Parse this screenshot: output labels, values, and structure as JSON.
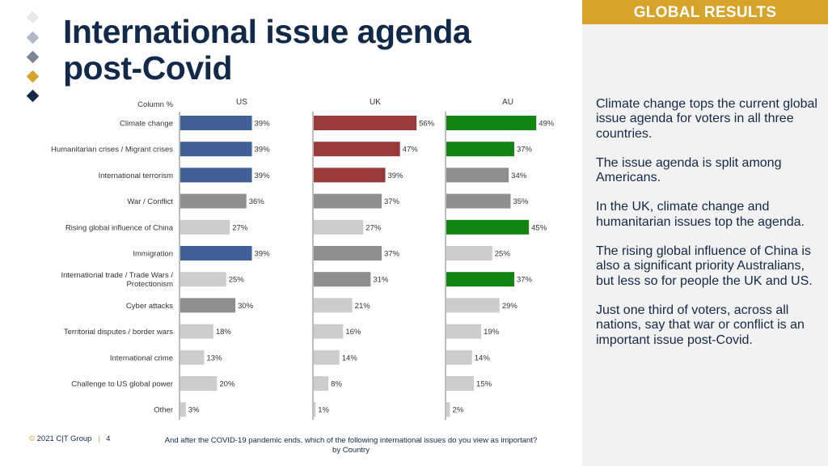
{
  "slide": {
    "title_line1": "International issue agenda",
    "title_line2": "post-Covid",
    "banner": "GLOBAL RESULTS",
    "insights": [
      "Climate change tops the current global issue agenda for voters in all three countries.",
      "The issue agenda is split among Americans.",
      "In the UK, climate change and humanitarian issues top the agenda.",
      "The rising global influence of China is also a significant priority Australians, but less so for people the UK and US.",
      "Just one third of voters, across all nations, say that war or conflict is an important issue post-Covid."
    ],
    "footer": {
      "copyright": "©",
      "org": "2021 C|T Group",
      "separator": "|",
      "page": "4",
      "question_line1": "And after the COVID-19 pandemic ends, which of the following international issues do you view as important?",
      "question_line2": "by Country"
    }
  },
  "colors": {
    "navy": "#12294a",
    "gold": "#d8a32a",
    "diamonds": [
      "#e6e8ee",
      "#b3b8c8",
      "#7d8496",
      "#d8a32a",
      "#12294a"
    ],
    "us_highlight": "#3f5f95",
    "uk_highlight": "#983a39",
    "au_highlight": "#118411",
    "grey_dark": "#8f8f8f",
    "grey_light": "#cdcdcd"
  },
  "chart_data": {
    "type": "bar",
    "orientation": "horizontal",
    "corner_label": "Column %",
    "categories": [
      "Climate change",
      "Humanitarian crises / Migrant crises",
      "International terrorism",
      "War / Conflict",
      "Rising global influence of China",
      "Immigration",
      "International trade / Trade Wars / Protectionism",
      "Cyber attacks",
      "Territorial disputes / border wars",
      "International crime",
      "Challenge to US global power",
      "Other"
    ],
    "category_display": [
      [
        "Climate change"
      ],
      [
        "Humanitarian crises / Migrant crises"
      ],
      [
        "International terrorism"
      ],
      [
        "War / Conflict"
      ],
      [
        "Rising global influence of China"
      ],
      [
        "Immigration"
      ],
      [
        "International trade / Trade Wars /",
        "Protectionism"
      ],
      [
        "Cyber attacks"
      ],
      [
        "Territorial disputes / border wars"
      ],
      [
        "International crime"
      ],
      [
        "Challenge to US global power"
      ],
      [
        "Other"
      ]
    ],
    "series": [
      {
        "name": "US",
        "values": [
          39,
          39,
          39,
          36,
          27,
          39,
          25,
          30,
          18,
          13,
          20,
          3
        ],
        "shade": [
          "hi",
          "hi",
          "hi",
          "dark",
          "light",
          "hi",
          "light",
          "dark",
          "light",
          "light",
          "light",
          "light"
        ]
      },
      {
        "name": "UK",
        "values": [
          56,
          47,
          39,
          37,
          27,
          37,
          31,
          21,
          16,
          14,
          8,
          1
        ],
        "shade": [
          "hi",
          "hi",
          "hi",
          "dark",
          "light",
          "dark",
          "dark",
          "light",
          "light",
          "light",
          "light",
          "light"
        ]
      },
      {
        "name": "AU",
        "values": [
          49,
          37,
          34,
          35,
          45,
          25,
          37,
          29,
          19,
          14,
          15,
          2
        ],
        "shade": [
          "hi",
          "hi",
          "dark",
          "dark",
          "hi",
          "light",
          "hi",
          "light",
          "light",
          "light",
          "light",
          "light"
        ]
      }
    ],
    "value_suffix": "%",
    "xlim": [
      0,
      100
    ]
  }
}
